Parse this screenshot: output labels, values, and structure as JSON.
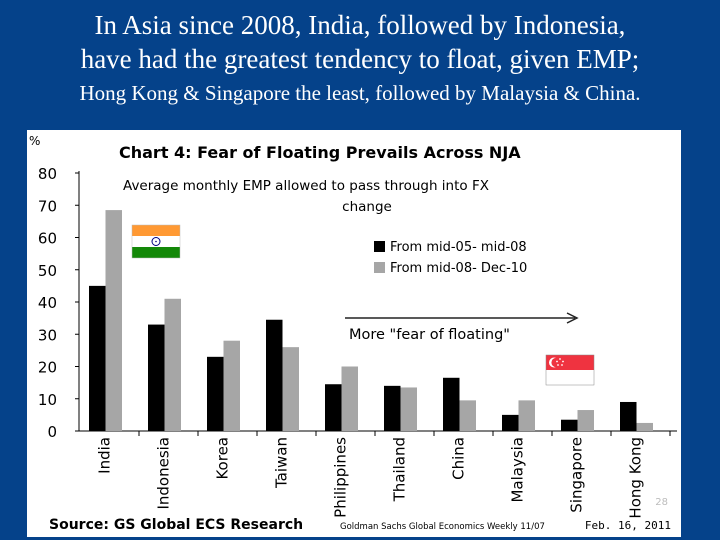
{
  "slide": {
    "title_line1": "In Asia since 2008, India, followed by Indonesia,",
    "title_line2": "have had the greatest tendency to float, given EMP;",
    "title_line3": "Hong Kong & Singapore the least, followed by Malaysia & China."
  },
  "chart_data": {
    "type": "bar",
    "title": "Chart 4: Fear of Floating Prevails Across NJA",
    "subtitle_line1": "Average monthly EMP allowed to pass through into FX",
    "subtitle_line2": "change",
    "ylabel": "%",
    "ylim": [
      0,
      80
    ],
    "yticks": [
      0,
      10,
      20,
      30,
      40,
      50,
      60,
      70,
      80
    ],
    "categories": [
      "India",
      "Indonesia",
      "Korea",
      "Taiwan",
      "Philippines",
      "Thailand",
      "China",
      "Malaysia",
      "Singapore",
      "Hong Kong"
    ],
    "series": [
      {
        "name": "From mid-05- mid-08",
        "color": "#000000",
        "values": [
          45,
          33,
          23,
          34.5,
          14.5,
          14,
          16.5,
          5,
          3.5,
          9
        ]
      },
      {
        "name": "From mid-08- Dec-10",
        "color": "#a6a6a6",
        "values": [
          68.5,
          41,
          28,
          26,
          20,
          13.5,
          9.5,
          9.5,
          6.5,
          2.5
        ]
      }
    ],
    "annotation": "More \"fear of floating\"",
    "source": "Source: GS Global ECS Research",
    "citation": "Goldman Sachs Global Economics Weekly 11/07",
    "date": "Feb. 16, 2011",
    "page_number": "28",
    "flags": [
      "india-flag",
      "singapore-flag"
    ]
  }
}
